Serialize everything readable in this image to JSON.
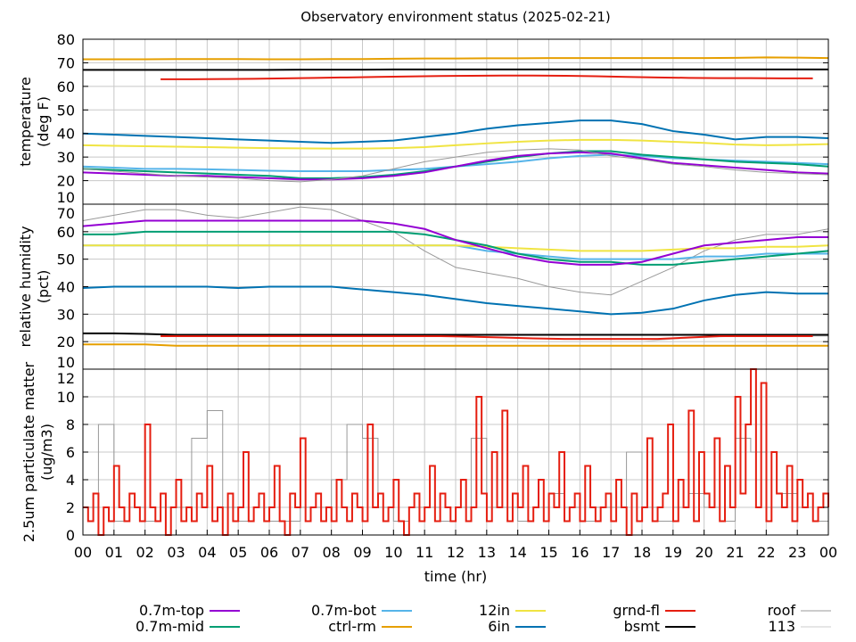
{
  "chart_data": {
    "type": "line",
    "title": "Observatory environment status (2025-02-21)",
    "xlabel": "time (hr)",
    "x_ticks": [
      "00",
      "01",
      "02",
      "03",
      "04",
      "05",
      "06",
      "07",
      "08",
      "09",
      "10",
      "11",
      "12",
      "13",
      "14",
      "15",
      "16",
      "17",
      "18",
      "19",
      "20",
      "21",
      "22",
      "23",
      "00"
    ],
    "grid": true,
    "legend_position": "bottom",
    "legend": [
      {
        "name": "0.7m-top",
        "color": "#9400d3"
      },
      {
        "name": "0.7m-mid",
        "color": "#009e73"
      },
      {
        "name": "0.7m-bot",
        "color": "#56b4e9"
      },
      {
        "name": "ctrl-rm",
        "color": "#e69f00"
      },
      {
        "name": "12in",
        "color": "#f0e442"
      },
      {
        "name": "6in",
        "color": "#0072b2"
      },
      {
        "name": "grnd-fl",
        "color": "#e51e10"
      },
      {
        "name": "bsmt",
        "color": "#000000"
      },
      {
        "name": "roof",
        "color": "#999999"
      },
      {
        "name": "113",
        "color": "#cccccc"
      }
    ],
    "panels": [
      {
        "ylabel": [
          "temperature",
          "(deg F)"
        ],
        "ylim": [
          10,
          80
        ],
        "y_ticks": [
          "80",
          "70",
          "60",
          "50",
          "40",
          "30",
          "20",
          "10"
        ],
        "series": [
          {
            "name": "ctrl-rm",
            "start": 0,
            "values": [
              71.5,
              71.5,
              71.5,
              71.6,
              71.6,
              71.6,
              71.5,
              71.5,
              71.6,
              71.6,
              71.7,
              71.8,
              71.8,
              71.9,
              71.9,
              72,
              72,
              72,
              72,
              72,
              72,
              72.1,
              72.3,
              72.2,
              72
            ]
          },
          {
            "name": "bsmt",
            "start": 0,
            "values": [
              67,
              67,
              67,
              67,
              67,
              67,
              67,
              67.1,
              67.1,
              67.1,
              67.2,
              67.2,
              67.2,
              67.2,
              67.2,
              67.2,
              67.2,
              67.2,
              67.2,
              67.2,
              67.2,
              67.2,
              67.2,
              67.2,
              67.2
            ]
          },
          {
            "name": "grnd-fl",
            "start": 2.5,
            "values": [
              63,
              63,
              63.1,
              63.2,
              63.4,
              63.6,
              63.8,
              64,
              64.2,
              64.4,
              64.5,
              64.6,
              64.6,
              64.5,
              64.3,
              64,
              63.8,
              63.6,
              63.5,
              63.5,
              63.4,
              63.4
            ]
          },
          {
            "name": "6in",
            "start": 0,
            "values": [
              40,
              39.5,
              39,
              38.5,
              38,
              37.5,
              37,
              36.5,
              36,
              36.5,
              37,
              38.5,
              40,
              42,
              43.5,
              44.5,
              45.5,
              45.5,
              44,
              41,
              39.5,
              37.5,
              38.5,
              38.5,
              38
            ]
          },
          {
            "name": "12in",
            "start": 0,
            "values": [
              35,
              34.8,
              34.6,
              34.4,
              34.2,
              34,
              33.8,
              33.7,
              33.6,
              33.6,
              33.8,
              34.2,
              35,
              35.8,
              36.5,
              37,
              37.3,
              37.3,
              37,
              36.5,
              36,
              35.3,
              35,
              35.2,
              35.5
            ]
          },
          {
            "name": "0.7m-bot",
            "start": 0,
            "values": [
              26,
              25.5,
              25,
              25,
              24.8,
              24.5,
              24.2,
              24,
              24,
              24,
              24.5,
              25,
              26,
              27,
              28,
              29.5,
              30.5,
              31,
              30.5,
              29.5,
              29,
              28.5,
              28,
              27.5,
              27
            ]
          },
          {
            "name": "0.7m-mid",
            "start": 0,
            "values": [
              25,
              24.5,
              24,
              23.5,
              23,
              22.5,
              22,
              21,
              21,
              21.5,
              22.5,
              24,
              26,
              28,
              30,
              31.5,
              32.5,
              32.5,
              31,
              30,
              29,
              28,
              27.5,
              27,
              26
            ]
          },
          {
            "name": "0.7m-top",
            "start": 0,
            "values": [
              23.5,
              23,
              22.5,
              22,
              22,
              21.5,
              21,
              20.5,
              20.5,
              21,
              22,
              23.5,
              26,
              28.5,
              30.5,
              31.5,
              32,
              31.5,
              29.5,
              27.5,
              26.5,
              25.5,
              24.5,
              23.5,
              23
            ]
          },
          {
            "name": "roof",
            "start": 0,
            "values": [
              25,
              24,
              23,
              22,
              21.5,
              21,
              20,
              19.5,
              20.5,
              22,
              25,
              28,
              30,
              32,
              33,
              33.5,
              33,
              30.5,
              29,
              27,
              26,
              24.5,
              23.5,
              23,
              22.5
            ]
          }
        ]
      },
      {
        "ylabel": [
          "relative humidity",
          "(pct)"
        ],
        "ylim": [
          10,
          70
        ],
        "y_ticks": [
          "70",
          "60",
          "50",
          "40",
          "30",
          "20",
          "10"
        ],
        "series": [
          {
            "name": "113",
            "start": 0,
            "values": [
              20,
              20,
              20,
              20,
              20,
              20,
              20,
              20,
              20,
              20,
              20,
              20,
              20,
              20,
              20,
              20,
              20,
              20,
              20,
              21,
              21.5,
              22,
              22,
              22,
              22
            ]
          },
          {
            "name": "roof",
            "start": 0,
            "values": [
              64,
              66,
              68,
              68,
              66,
              65,
              67,
              69,
              68,
              64,
              60,
              53,
              47,
              45,
              43,
              40,
              38,
              37,
              42,
              47,
              53,
              57,
              59,
              59,
              61
            ]
          },
          {
            "name": "0.7m-bot",
            "start": 0,
            "values": [
              55,
              55,
              55,
              55,
              55,
              55,
              55,
              55,
              55,
              55,
              55,
              55,
              55,
              53,
              52,
              51,
              50,
              50,
              50,
              50,
              51,
              51,
              52,
              52,
              52
            ]
          },
          {
            "name": "12in",
            "start": 0,
            "values": [
              55,
              55,
              55,
              55,
              55,
              55,
              55,
              55,
              55,
              55,
              55,
              55,
              55,
              54.5,
              54,
              53.5,
              53,
              53,
              53,
              53.5,
              54,
              54,
              54.5,
              54.5,
              55
            ]
          },
          {
            "name": "0.7m-mid",
            "start": 0,
            "values": [
              59,
              59,
              60,
              60,
              60,
              60,
              60,
              60,
              60,
              60,
              60,
              59,
              57,
              55,
              52,
              50,
              49,
              49,
              48,
              48,
              49,
              50,
              51,
              52,
              53
            ]
          },
          {
            "name": "0.7m-top",
            "start": 0,
            "values": [
              62,
              63,
              64,
              64,
              64,
              64,
              64,
              64,
              64,
              64,
              63,
              61,
              57,
              54,
              51,
              49,
              48,
              48,
              49,
              52,
              55,
              56,
              57,
              58,
              58
            ]
          },
          {
            "name": "6in",
            "start": 0,
            "values": [
              39.5,
              40,
              40,
              40,
              40,
              39.5,
              40,
              40,
              40,
              39,
              38,
              37,
              35.5,
              34,
              33,
              32,
              31,
              30,
              30.5,
              32,
              35,
              37,
              38,
              37.5,
              37.5
            ]
          },
          {
            "name": "bsmt",
            "start": 0,
            "values": [
              23,
              23,
              22.8,
              22.5,
              22.5,
              22.5,
              22.5,
              22.5,
              22.5,
              22.5,
              22.5,
              22.5,
              22.5,
              22.5,
              22.5,
              22.5,
              22.5,
              22.5,
              22.5,
              22.5,
              22.5,
              22.5,
              22.5,
              22.5,
              22.5
            ]
          },
          {
            "name": "grnd-fl",
            "start": 2.5,
            "values": [
              22,
              22,
              22,
              22,
              22,
              22,
              22,
              22,
              22,
              22,
              21.8,
              21.5,
              21.2,
              21,
              21,
              21,
              21,
              21.5,
              22,
              22,
              22,
              22
            ]
          },
          {
            "name": "ctrl-rm",
            "start": 0,
            "values": [
              19,
              19,
              19,
              18.5,
              18.5,
              18.5,
              18.5,
              18.5,
              18.5,
              18.5,
              18.5,
              18.5,
              18.5,
              18.5,
              18.5,
              18.5,
              18.5,
              18.5,
              18.5,
              18.5,
              18.5,
              18.5,
              18.5,
              18.5,
              18.5
            ]
          }
        ]
      },
      {
        "ylabel": [
          "2.5um particulate matter",
          "(ug/m3)"
        ],
        "ylim": [
          0,
          12
        ],
        "y_ticks": [
          "12",
          "10",
          "8",
          "6",
          "4",
          "2",
          "0"
        ],
        "series": [
          {
            "name": "roof",
            "start": 0,
            "step": 0.5,
            "values": [
              2,
              8,
              1,
              2,
              1,
              2,
              2,
              7,
              9,
              2,
              1,
              2,
              1,
              1,
              2,
              2,
              4,
              8,
              7,
              2,
              1,
              2,
              2,
              1,
              2,
              7,
              2,
              2,
              1,
              2,
              3,
              2,
              1,
              2,
              2,
              6,
              2,
              1,
              2,
              3,
              2,
              1,
              7,
              6,
              2,
              3,
              2,
              1,
              2
            ]
          },
          {
            "name": "grnd-fl",
            "start": 0,
            "step": 0.1667,
            "values": [
              2,
              1,
              3,
              0,
              2,
              1,
              5,
              2,
              1,
              3,
              2,
              1,
              8,
              2,
              1,
              3,
              0,
              2,
              4,
              1,
              2,
              1,
              3,
              2,
              5,
              1,
              2,
              0,
              3,
              1,
              2,
              6,
              1,
              2,
              3,
              1,
              2,
              5,
              1,
              0,
              3,
              2,
              7,
              1,
              2,
              3,
              1,
              2,
              1,
              4,
              2,
              1,
              3,
              2,
              1,
              8,
              2,
              3,
              1,
              2,
              4,
              1,
              0,
              2,
              3,
              1,
              2,
              5,
              1,
              3,
              2,
              1,
              2,
              4,
              1,
              2,
              10,
              3,
              1,
              6,
              2,
              9,
              1,
              3,
              2,
              5,
              1,
              2,
              4,
              1,
              3,
              2,
              6,
              1,
              2,
              3,
              1,
              5,
              2,
              1,
              2,
              3,
              1,
              4,
              2,
              0,
              3,
              1,
              2,
              7,
              1,
              2,
              3,
              8,
              1,
              4,
              2,
              9,
              1,
              6,
              3,
              2,
              7,
              1,
              5,
              2,
              10,
              3,
              8,
              12,
              2,
              11,
              1,
              6,
              3,
              2,
              5,
              1,
              4,
              2,
              3,
              1,
              2,
              3,
              2
            ]
          }
        ]
      }
    ]
  }
}
